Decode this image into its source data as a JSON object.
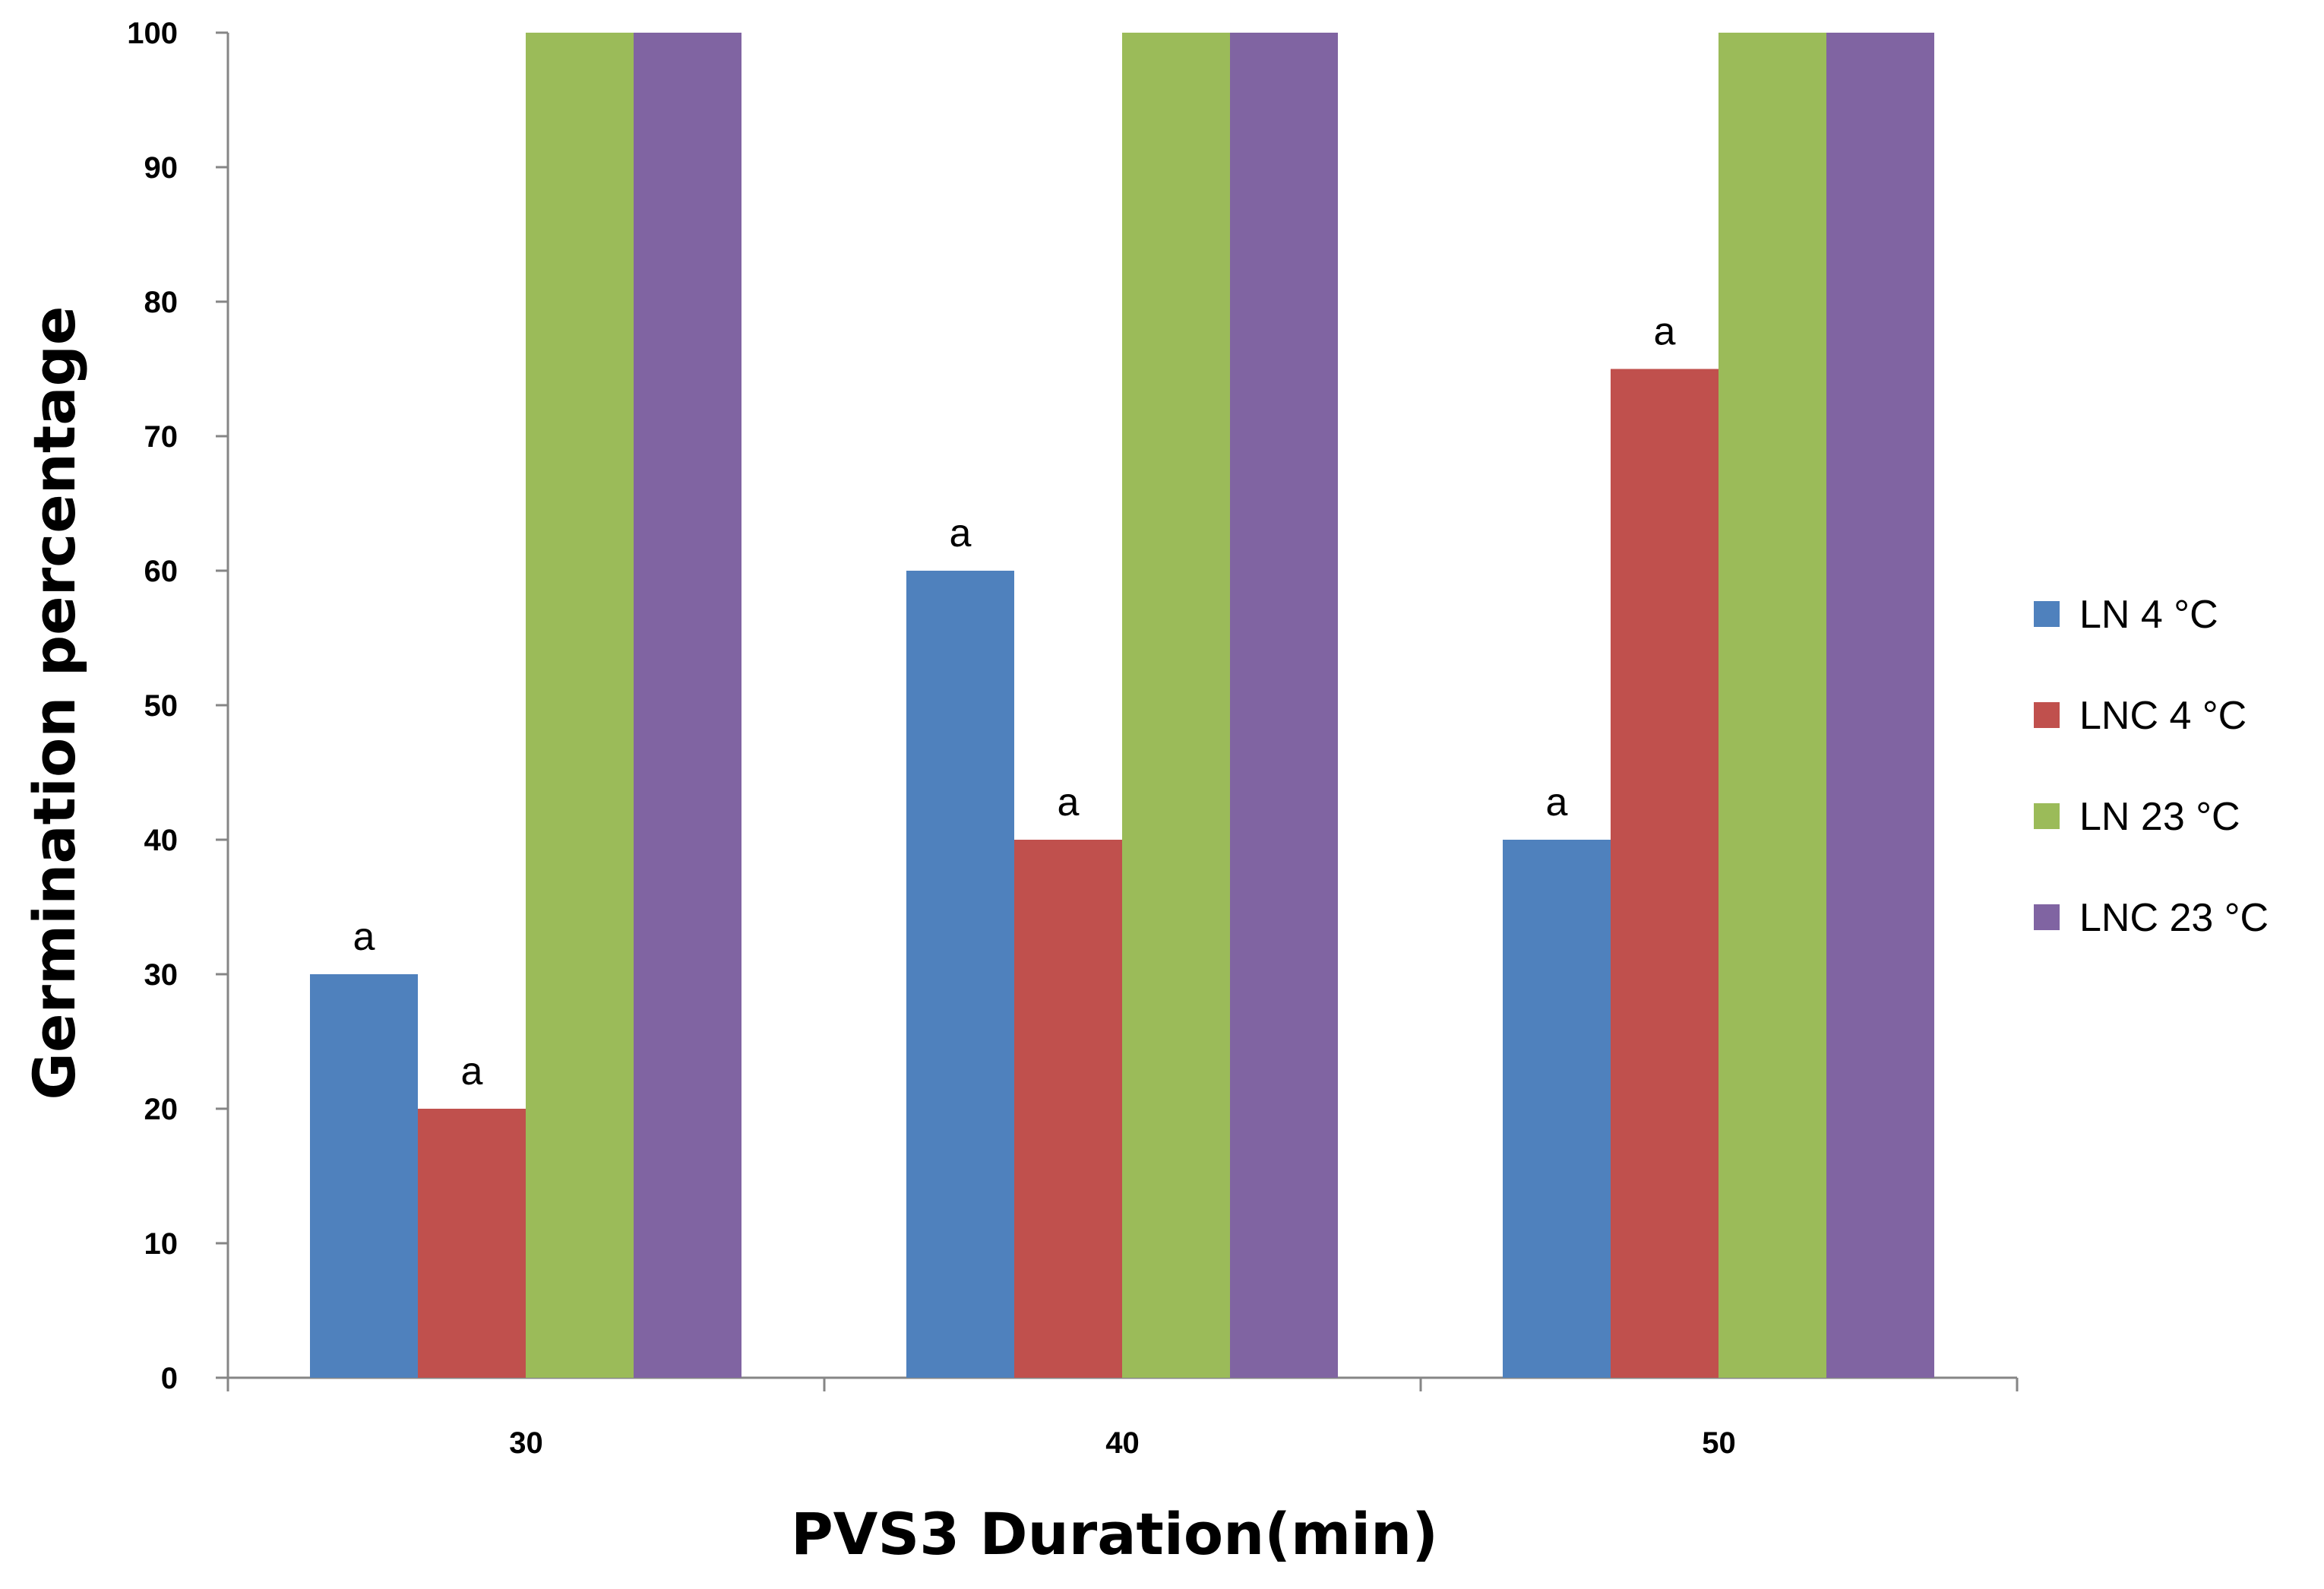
{
  "chart_data": {
    "type": "bar",
    "title": "",
    "xlabel": "PVS3 Duration(min)",
    "ylabel": "Germination percentage",
    "categories": [
      "30",
      "40",
      "50"
    ],
    "ylim": [
      0,
      100
    ],
    "yticks": [
      0,
      10,
      20,
      30,
      40,
      50,
      60,
      70,
      80,
      90,
      100
    ],
    "ytick_labels": [
      "0",
      "10",
      "20",
      "30",
      "40",
      "50",
      "60",
      "70",
      "80",
      "90",
      "100"
    ],
    "grid": false,
    "legend_position": "right",
    "series": [
      {
        "name": "LN 4 °C",
        "color": "#4F81BD",
        "values": [
          30,
          60,
          40
        ],
        "labels": [
          "a",
          "a",
          "a"
        ]
      },
      {
        "name": "LNC 4 °C",
        "color": "#C0504D",
        "values": [
          20,
          40,
          75
        ],
        "labels": [
          "a",
          "a",
          "a"
        ]
      },
      {
        "name": "LN 23 °C",
        "color": "#9BBB59",
        "values": [
          100,
          100,
          100
        ],
        "labels": [
          "",
          "",
          ""
        ]
      },
      {
        "name": "LNC 23 °C",
        "color": "#8064A2",
        "values": [
          100,
          100,
          100
        ],
        "labels": [
          "",
          "",
          ""
        ]
      }
    ]
  }
}
